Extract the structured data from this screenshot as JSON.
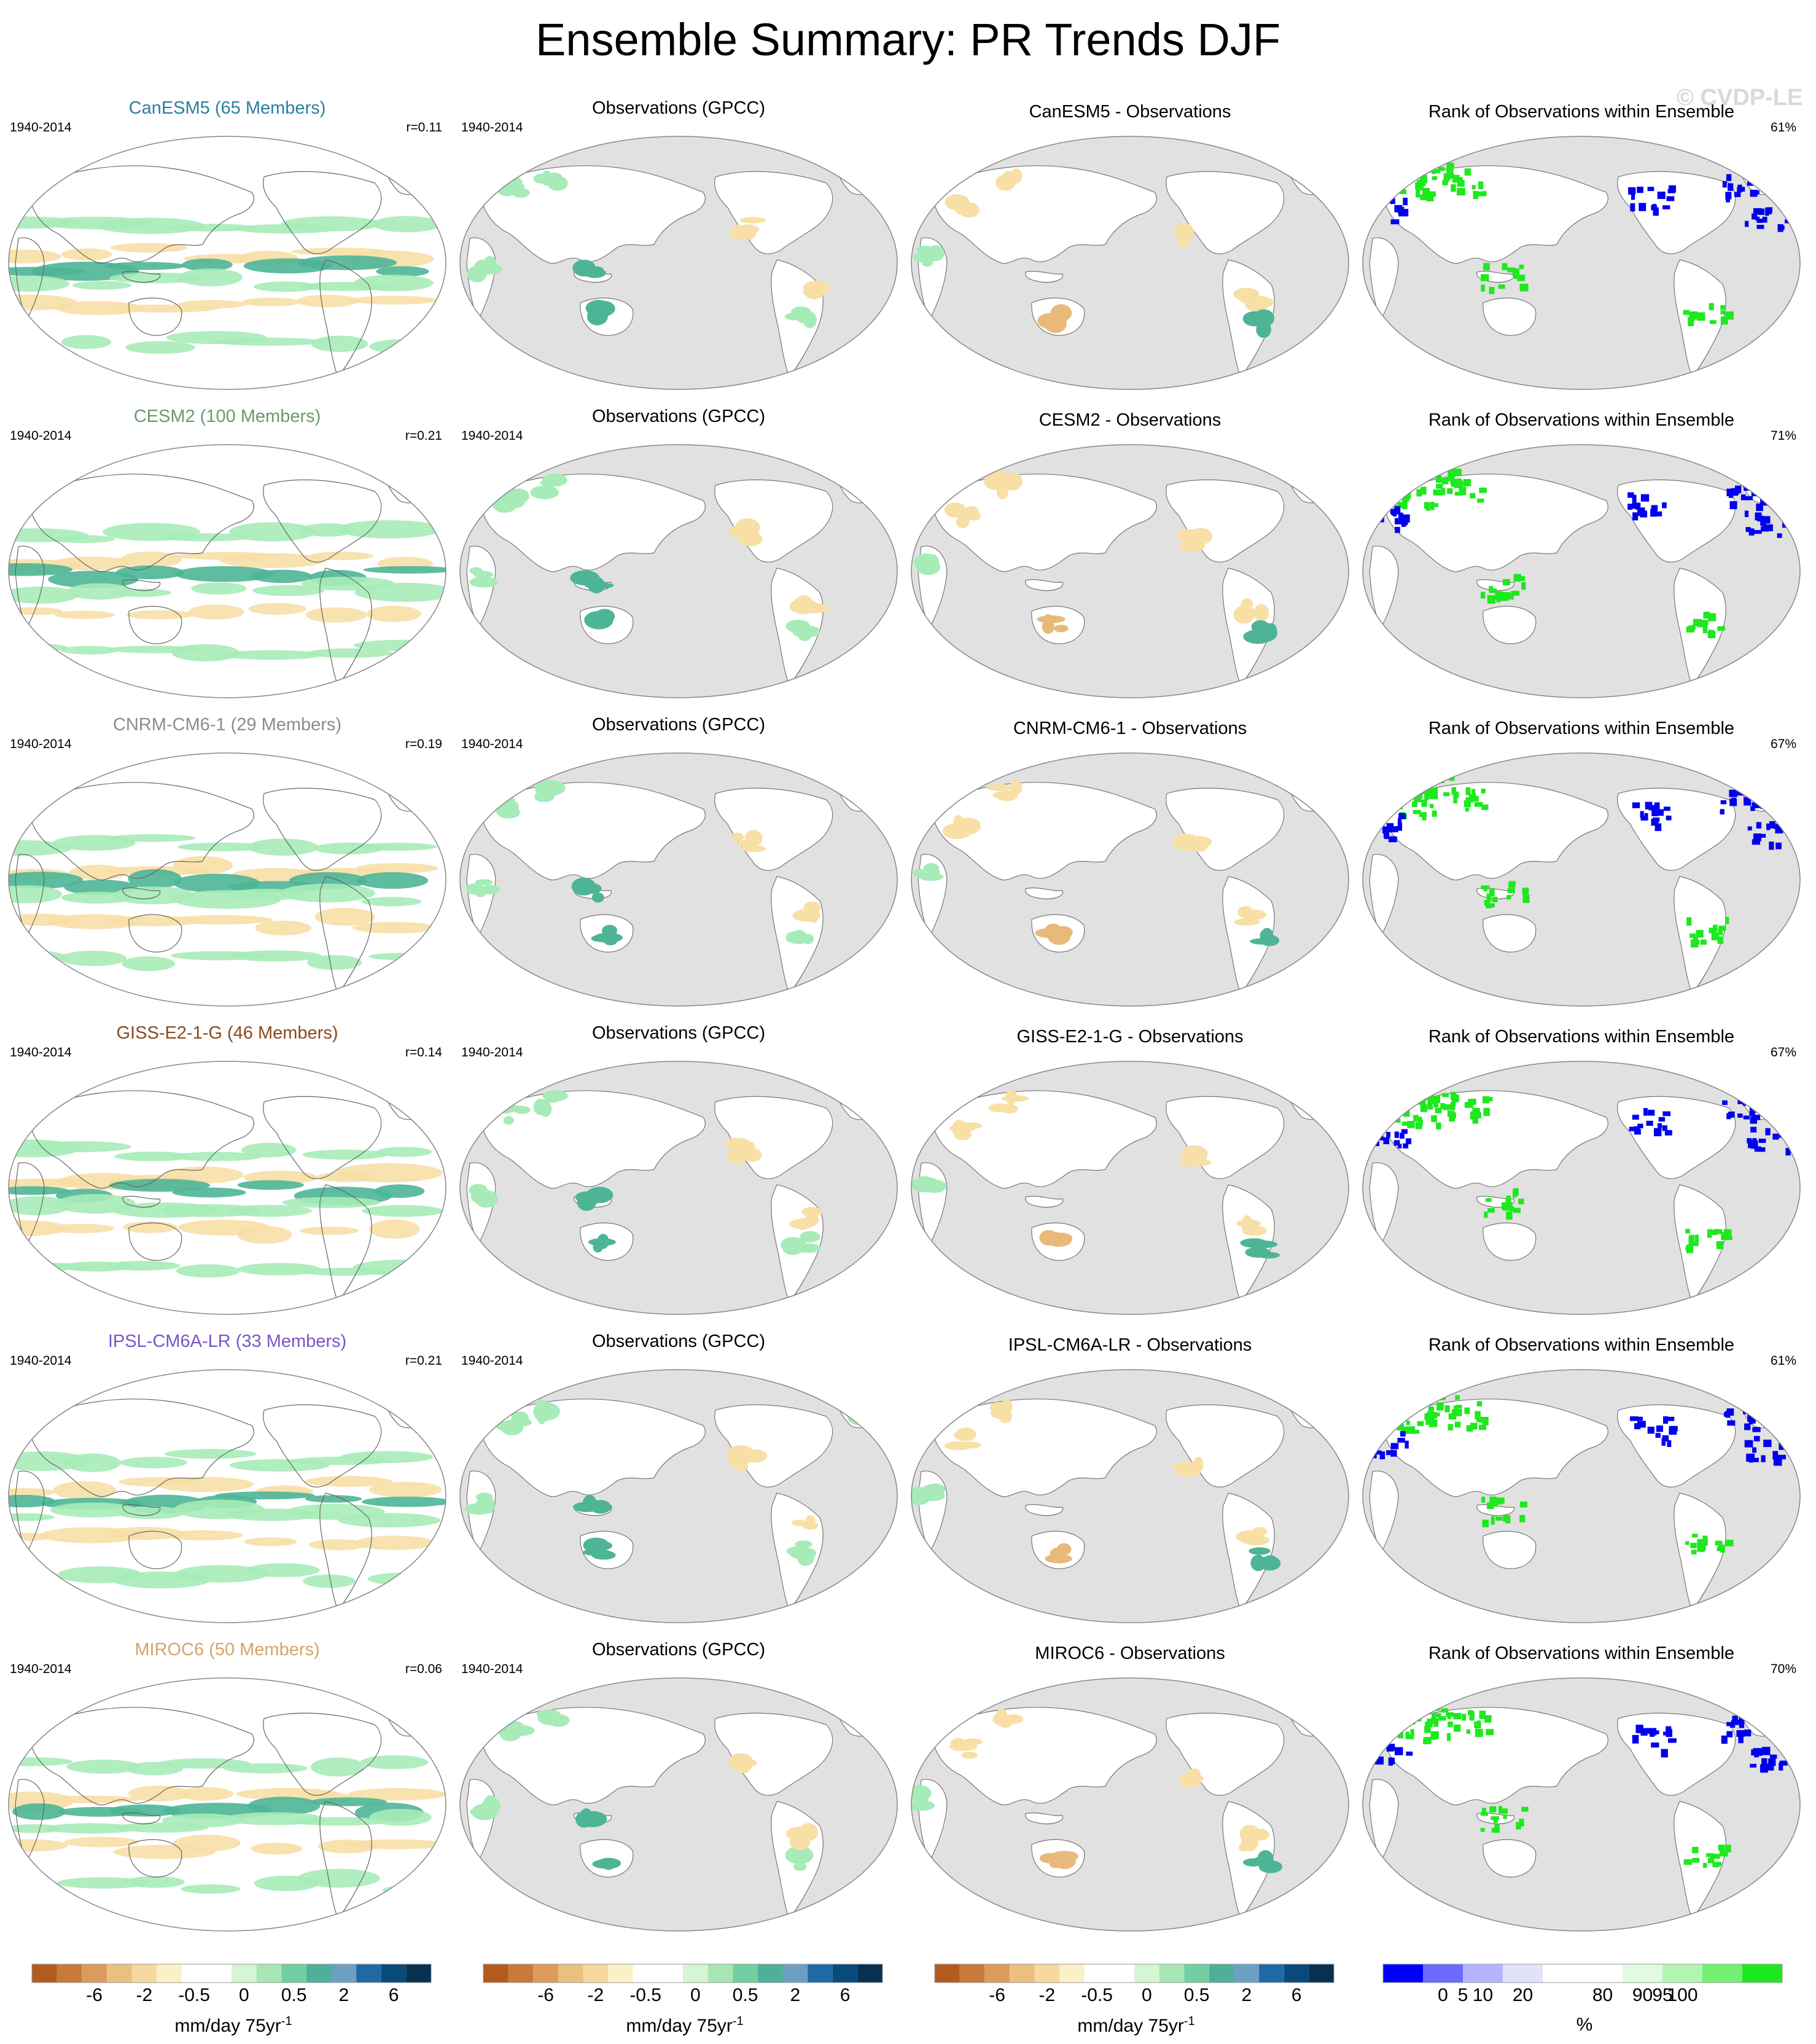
{
  "title": "Ensemble Summary: PR Trends DJF",
  "watermark": "© CVDP-LE",
  "rows": [
    {
      "model": "CanESM5 (65 Members)",
      "model_color": "#2a7f9e",
      "period": "1940-2014",
      "r": "r=0.11",
      "obs_title": "Observations (GPCC)",
      "obs_period": "1940-2014",
      "diff_title": "CanESM5 - Observations",
      "rank_title": "Rank of Observations within Ensemble",
      "rank_pct": "61%"
    },
    {
      "model": "CESM2 (100 Members)",
      "model_color": "#6b9a6b",
      "period": "1940-2014",
      "r": "r=0.21",
      "obs_title": "Observations (GPCC)",
      "obs_period": "1940-2014",
      "diff_title": "CESM2 - Observations",
      "rank_title": "Rank of Observations within Ensemble",
      "rank_pct": "71%"
    },
    {
      "model": "CNRM-CM6-1 (29 Members)",
      "model_color": "#8c8c8c",
      "period": "1940-2014",
      "r": "r=0.19",
      "obs_title": "Observations (GPCC)",
      "obs_period": "1940-2014",
      "diff_title": "CNRM-CM6-1 - Observations",
      "rank_title": "Rank of Observations within Ensemble",
      "rank_pct": "67%"
    },
    {
      "model": "GISS-E2-1-G (46 Members)",
      "model_color": "#8b4a1e",
      "period": "1940-2014",
      "r": "r=0.14",
      "obs_title": "Observations (GPCC)",
      "obs_period": "1940-2014",
      "diff_title": "GISS-E2-1-G - Observations",
      "rank_title": "Rank of Observations within Ensemble",
      "rank_pct": "67%"
    },
    {
      "model": "IPSL-CM6A-LR (33 Members)",
      "model_color": "#7a55c9",
      "period": "1940-2014",
      "r": "r=0.21",
      "obs_title": "Observations (GPCC)",
      "obs_period": "1940-2014",
      "diff_title": "IPSL-CM6A-LR - Observations",
      "rank_title": "Rank of Observations within Ensemble",
      "rank_pct": "61%"
    },
    {
      "model": "MIROC6 (50 Members)",
      "model_color": "#d4a56a",
      "period": "1940-2014",
      "r": "r=0.06",
      "obs_title": "Observations (GPCC)",
      "obs_period": "1940-2014",
      "diff_title": "MIROC6 - Observations",
      "rank_title": "Rank of Observations within Ensemble",
      "rank_pct": "70%"
    }
  ],
  "colorbars": {
    "trend": {
      "unit": "mm/day 75yr",
      "unit_sup": "-1",
      "ticks": [
        "-6",
        "-2",
        "-0.5",
        "0",
        "0.5",
        "2",
        "6"
      ],
      "colors": [
        "#b35b1f",
        "#c97a3a",
        "#dc9b5c",
        "#ebbf7f",
        "#f5d99f",
        "#fbf0c8",
        "#ffffff",
        "#ffffff",
        "#d6f5d2",
        "#a6e6b5",
        "#72cfa2",
        "#4fb09a",
        "#6d9fc4",
        "#1f6aa5",
        "#0a4a7a",
        "#08304f"
      ]
    },
    "rank": {
      "unit": "%",
      "ticks": [
        "0",
        "5",
        "10",
        "20",
        "80",
        "90",
        "95",
        "100"
      ],
      "colors": [
        "#0000ff",
        "#6b6bff",
        "#b4b4ff",
        "#e2e2fb",
        "#ffffff",
        "#ffffff",
        "#e0fbe0",
        "#b2f5b2",
        "#72f072",
        "#1ee81e"
      ]
    }
  },
  "map_colors": {
    "land_gray": "#e1e1e1",
    "wet": "#a7ebb8",
    "wet_strong": "#4db596",
    "dry": "#f7dfa6",
    "dry_strong": "#e9b97c",
    "rank_high": "#1ee81e",
    "rank_low": "#0000ee"
  }
}
